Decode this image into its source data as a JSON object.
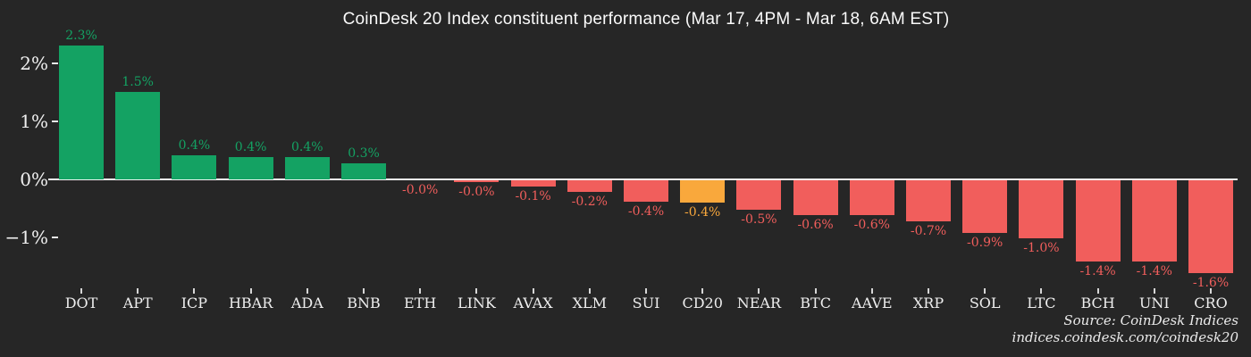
{
  "title": "CoinDesk 20 Index constituent performance (Mar 17, 4PM - Mar 18, 6AM EST)",
  "source": {
    "line1": "Source: CoinDesk Indices",
    "line2": "indices.coindesk.com/coindesk20"
  },
  "colors": {
    "background": "#262626",
    "up": "#14a263",
    "down": "#f15e5c",
    "index": "#f9a83c",
    "axis_line": "#f2f2f2",
    "tick_text": "#f0f0f0",
    "category_text": "#eeeeee"
  },
  "chart_data": {
    "type": "bar",
    "title": "CoinDesk 20 Index constituent performance (Mar 17, 4PM - Mar 18, 6AM EST)",
    "xlabel": "",
    "ylabel": "",
    "ylim": [
      -1.8,
      2.6
    ],
    "grid": false,
    "legend": "none",
    "highlight_category": "CD20",
    "yticks": [
      {
        "label": "2%",
        "value": 2
      },
      {
        "label": "1%",
        "value": 1
      },
      {
        "label": "0%",
        "value": 0
      },
      {
        "label": "−1%",
        "value": -1
      }
    ],
    "items": [
      {
        "category": "DOT",
        "value": 2.3,
        "label": "2.3%",
        "role": "up"
      },
      {
        "category": "APT",
        "value": 1.5,
        "label": "1.5%",
        "role": "up"
      },
      {
        "category": "ICP",
        "value": 0.42,
        "label": "0.4%",
        "role": "up"
      },
      {
        "category": "HBAR",
        "value": 0.38,
        "label": "0.4%",
        "role": "up"
      },
      {
        "category": "ADA",
        "value": 0.38,
        "label": "0.4%",
        "role": "up"
      },
      {
        "category": "BNB",
        "value": 0.28,
        "label": "0.3%",
        "role": "up"
      },
      {
        "category": "ETH",
        "value": -0.0,
        "label": "-0.0%",
        "role": "down"
      },
      {
        "category": "LINK",
        "value": -0.03,
        "label": "-0.0%",
        "role": "down"
      },
      {
        "category": "AVAX",
        "value": -0.1,
        "label": "-0.1%",
        "role": "down"
      },
      {
        "category": "XLM",
        "value": -0.2,
        "label": "-0.2%",
        "role": "down"
      },
      {
        "category": "SUI",
        "value": -0.37,
        "label": "-0.4%",
        "role": "down"
      },
      {
        "category": "CD20",
        "value": -0.38,
        "label": "-0.4%",
        "role": "index"
      },
      {
        "category": "NEAR",
        "value": -0.5,
        "label": "-0.5%",
        "role": "down"
      },
      {
        "category": "BTC",
        "value": -0.6,
        "label": "-0.6%",
        "role": "down"
      },
      {
        "category": "AAVE",
        "value": -0.6,
        "label": "-0.6%",
        "role": "down"
      },
      {
        "category": "XRP",
        "value": -0.7,
        "label": "-0.7%",
        "role": "down"
      },
      {
        "category": "SOL",
        "value": -0.9,
        "label": "-0.9%",
        "role": "down"
      },
      {
        "category": "LTC",
        "value": -1.0,
        "label": "-1.0%",
        "role": "down"
      },
      {
        "category": "BCH",
        "value": -1.4,
        "label": "-1.4%",
        "role": "down"
      },
      {
        "category": "UNI",
        "value": -1.4,
        "label": "-1.4%",
        "role": "down"
      },
      {
        "category": "CRO",
        "value": -1.6,
        "label": "-1.6%",
        "role": "down"
      }
    ]
  }
}
